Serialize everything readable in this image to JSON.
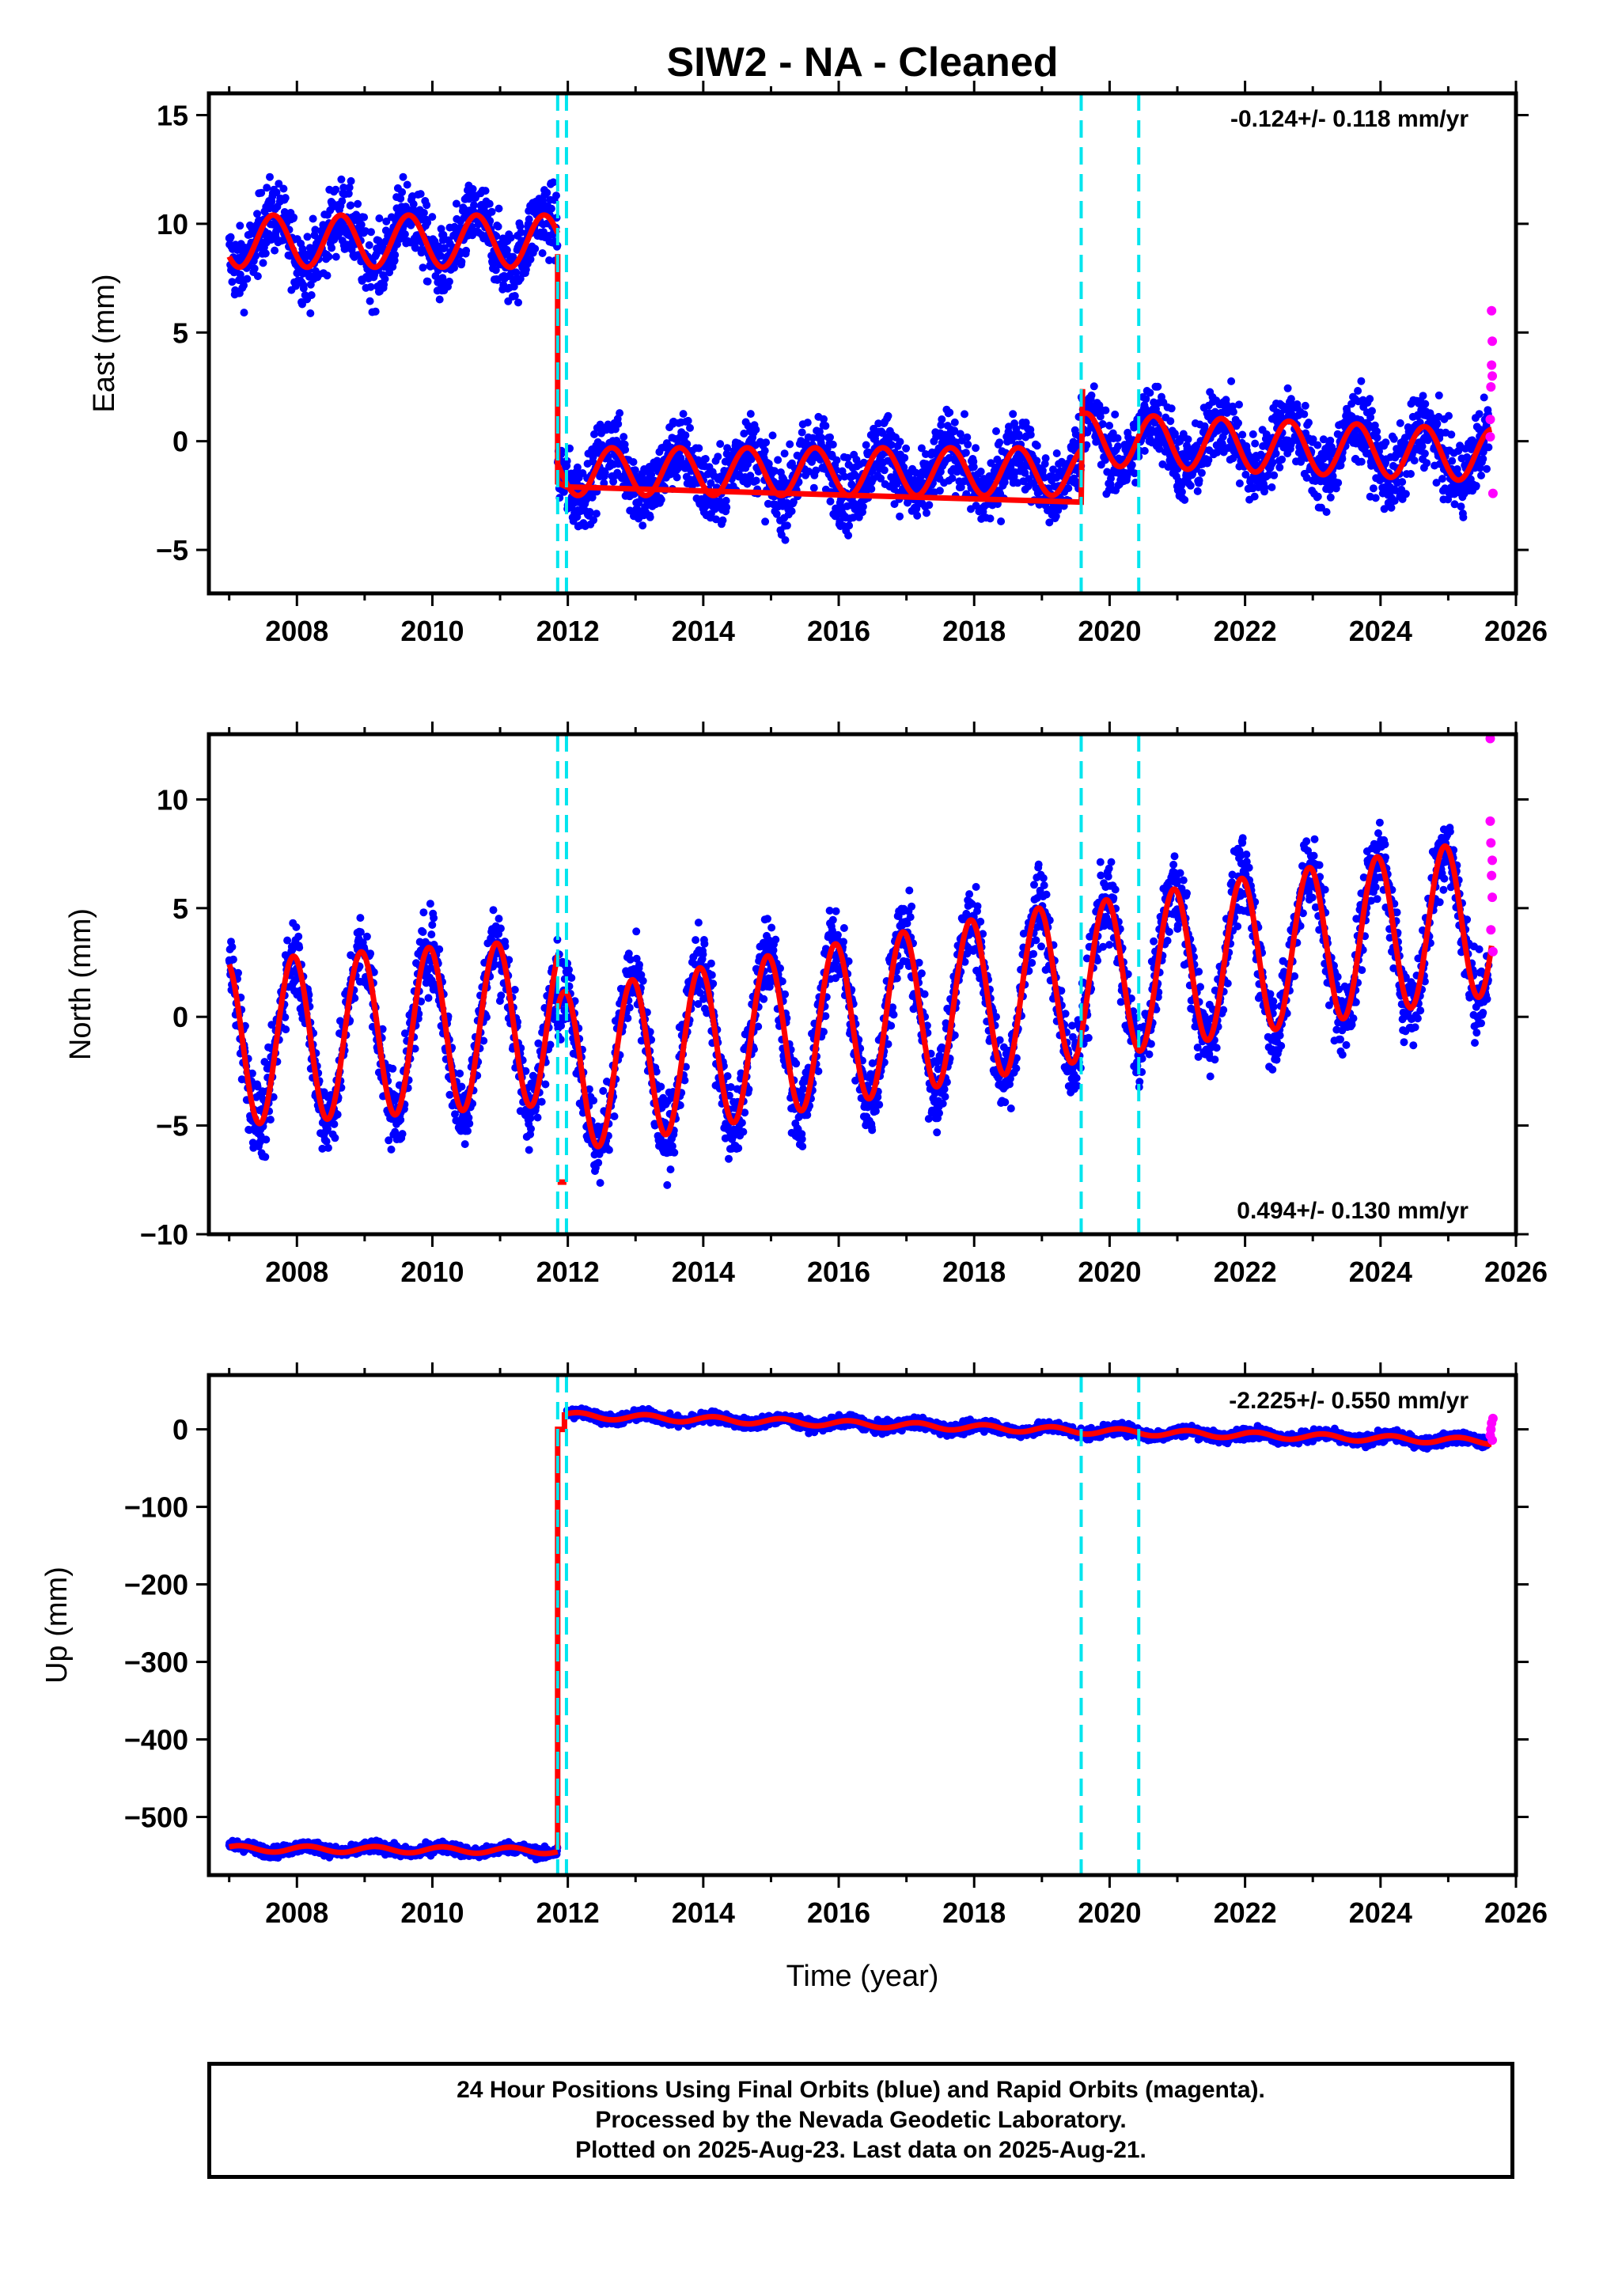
{
  "figure": {
    "title": "SIW2  - NA - Cleaned",
    "xlabel": "Time (year)",
    "caption": [
      "24 Hour Positions Using Final Orbits (blue) and Rapid Orbits (magenta).",
      "Processed by the Nevada Geodetic Laboratory.",
      "Plotted on 2025-Aug-23. Last data on 2025-Aug-21."
    ],
    "colors": {
      "final_orbits": "#0000ff",
      "rapid_orbits": "#ff00ff",
      "model": "#ff0000",
      "offsets": "#00e5ee"
    }
  },
  "chart_data": [
    {
      "type": "scatter",
      "name": "east",
      "ylabel": "East (mm)",
      "rate_label": "-0.124+/- 0.118 mm/yr",
      "rate_position": "top-right",
      "xlim": [
        2006.7,
        2026.0
      ],
      "ylim": [
        -7,
        16
      ],
      "xticks": [
        2008,
        2010,
        2012,
        2014,
        2016,
        2018,
        2020,
        2022,
        2024,
        2026
      ],
      "yticks": [
        -5,
        0,
        5,
        10,
        15
      ],
      "ytick_labels": [
        "−5",
        "0",
        "5",
        "10",
        "15"
      ],
      "offset_epochs": [
        2011.85,
        2011.98,
        2019.58,
        2020.43
      ],
      "model": {
        "segments": [
          {
            "start": 2007.0,
            "end": 2011.85,
            "base": 9.2,
            "rate": 0.0,
            "amp": 1.2,
            "phase": 0.6
          },
          {
            "start": 2011.85,
            "end": 2019.58,
            "base": -1.4,
            "rate": 0.0,
            "amp": 1.1,
            "phase": 0.6
          },
          {
            "start": 2019.58,
            "end": 2025.64,
            "base": 0.1,
            "rate": -0.124,
            "amp": 1.2,
            "phase": 0.6
          }
        ],
        "step_points": [
          [
            2011.85,
            8.6
          ],
          [
            2011.85,
            -1.9
          ],
          [
            2011.98,
            -2.1
          ],
          [
            2019.58,
            -2.8
          ],
          [
            2019.6,
            2.4
          ]
        ]
      },
      "scatter_noise": 1.2,
      "rapid_points": [
        [
          2025.62,
          1.0
        ],
        [
          2025.63,
          2.5
        ],
        [
          2025.64,
          3.5
        ],
        [
          2025.65,
          4.6
        ],
        [
          2025.64,
          6.0
        ],
        [
          2025.66,
          -2.4
        ],
        [
          2025.62,
          0.2
        ],
        [
          2025.65,
          3.0
        ]
      ]
    },
    {
      "type": "scatter",
      "name": "north",
      "ylabel": "North (mm)",
      "rate_label": "0.494+/- 0.130 mm/yr",
      "rate_position": "bottom-right",
      "xlim": [
        2006.7,
        2026.0
      ],
      "ylim": [
        -10,
        13
      ],
      "xticks": [
        2008,
        2010,
        2012,
        2014,
        2016,
        2018,
        2020,
        2022,
        2024,
        2026
      ],
      "yticks": [
        -10,
        -5,
        0,
        5,
        10
      ],
      "ytick_labels": [
        "−10",
        "−5",
        "0",
        "5",
        "10"
      ],
      "offset_epochs": [
        2011.85,
        2011.98,
        2019.58,
        2020.43
      ],
      "model": {
        "segments": [
          {
            "start": 2007.0,
            "end": 2011.85,
            "base": -1.2,
            "rate": 0.2,
            "amp": 3.8,
            "phase": 0.3
          },
          {
            "start": 2011.85,
            "end": 2019.58,
            "base": -2.6,
            "rate": 0.55,
            "amp": 3.7,
            "phase": 0.3
          },
          {
            "start": 2019.58,
            "end": 2025.64,
            "base": 1.6,
            "rate": 0.494,
            "amp": 3.6,
            "phase": 0.3
          }
        ],
        "step_points": [
          [
            2011.85,
            -7.6
          ],
          [
            2011.98,
            -7.6
          ]
        ]
      },
      "scatter_noise": 1.3,
      "rapid_points": [
        [
          2025.62,
          12.8
        ],
        [
          2025.63,
          8.0
        ],
        [
          2025.64,
          6.5
        ],
        [
          2025.65,
          5.5
        ],
        [
          2025.66,
          3.0
        ],
        [
          2025.63,
          4.0
        ],
        [
          2025.65,
          7.2
        ],
        [
          2025.62,
          9.0
        ]
      ]
    },
    {
      "type": "scatter",
      "name": "up",
      "ylabel": "Up (mm)",
      "rate_label": "-2.225+/- 0.550 mm/yr",
      "rate_position": "top-right",
      "xlim": [
        2006.7,
        2026.0
      ],
      "ylim": [
        -575,
        70
      ],
      "xticks": [
        2008,
        2010,
        2012,
        2014,
        2016,
        2018,
        2020,
        2022,
        2024,
        2026
      ],
      "yticks": [
        -500,
        -400,
        -300,
        -200,
        -100,
        0
      ],
      "ytick_labels": [
        "−500",
        "−400",
        "−300",
        "−200",
        "−100",
        "0"
      ],
      "offset_epochs": [
        2011.85,
        2011.98,
        2019.58,
        2020.43
      ],
      "model": {
        "segments": [
          {
            "start": 2007.0,
            "end": 2011.85,
            "base": -541,
            "rate": -0.5,
            "amp": 4,
            "phase": 0.1
          },
          {
            "start": 2011.98,
            "end": 2019.58,
            "base": 18,
            "rate": -2.6,
            "amp": 4,
            "phase": 0.1
          },
          {
            "start": 2019.58,
            "end": 2025.64,
            "base": -2,
            "rate": -2.225,
            "amp": 4,
            "phase": 0.1
          }
        ],
        "step_points": [
          [
            2011.85,
            -541
          ],
          [
            2011.85,
            0
          ],
          [
            2011.95,
            0
          ],
          [
            2011.95,
            22
          ]
        ]
      },
      "scatter_noise": 5,
      "rapid_points": [
        [
          2025.62,
          -8
        ],
        [
          2025.64,
          8
        ],
        [
          2025.65,
          -14
        ],
        [
          2025.66,
          14
        ],
        [
          2025.63,
          0
        ]
      ]
    }
  ]
}
